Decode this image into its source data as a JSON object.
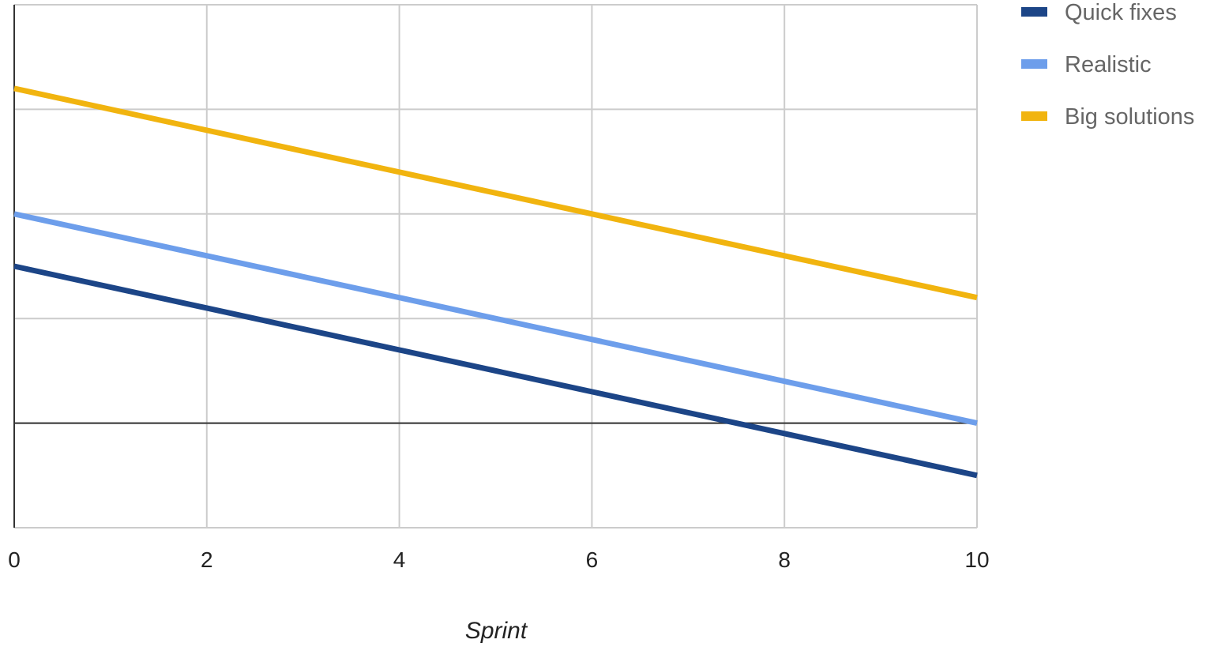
{
  "chart_data": {
    "type": "line",
    "xlabel": "Sprint",
    "ylabel": "",
    "xlim": [
      0,
      10
    ],
    "ylim": [
      -2,
      8
    ],
    "x_ticks": [
      0,
      2,
      4,
      6,
      8,
      10
    ],
    "x_tick_labels": [
      "0",
      "2",
      "4",
      "6",
      "8",
      "10"
    ],
    "y_gridlines": [
      -2,
      0,
      2,
      4,
      6,
      8
    ],
    "grid": true,
    "legend_position": "right",
    "series": [
      {
        "name": "Quick fixes",
        "color": "#1c4587",
        "x": [
          0,
          10
        ],
        "y": [
          3,
          -1
        ]
      },
      {
        "name": "Realistic",
        "color": "#6d9eeb",
        "x": [
          0,
          10
        ],
        "y": [
          4,
          0
        ]
      },
      {
        "name": "Big solutions",
        "color": "#f1b40f",
        "x": [
          0,
          10
        ],
        "y": [
          6.4,
          2.4
        ]
      }
    ]
  }
}
